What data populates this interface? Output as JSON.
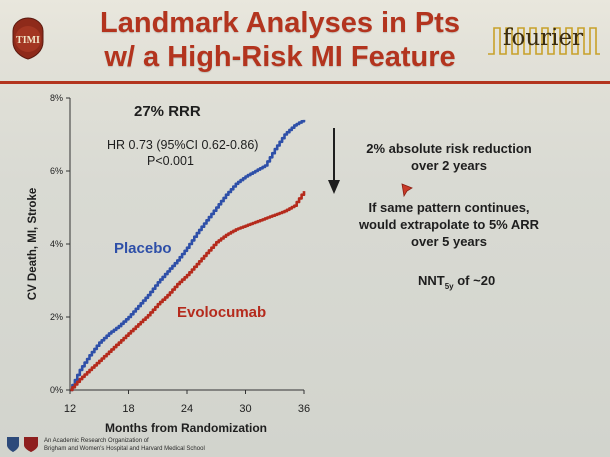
{
  "slide": {
    "title_line1": "Landmark Analyses in Pts",
    "title_line2": "w/ a High-Risk MI Feature",
    "timi_logo_text": "TIMI",
    "fourier_logo_text": "fourier"
  },
  "annotations": {
    "rrr": "27% RRR",
    "hr": "HR 0.73 (95%CI 0.62-0.86)",
    "p": "P<0.001",
    "abs_line1": "2% absolute risk reduction",
    "abs_line2": "over 2 years",
    "extrap_line1": "If same pattern continues,",
    "extrap_line2": "would extrapolate to 5% ARR",
    "extrap_line3": "over 5 years",
    "nnt_main": "NNT",
    "nnt_sub": "5y",
    "nnt_tail": " of ~20"
  },
  "footer": {
    "line1": "An Academic Research Organization of",
    "line2": "Brigham and Women's Hospital and Harvard Medical School"
  },
  "colors": {
    "title": "#b3341e",
    "placebo": "#2e4fa8",
    "evolocumab": "#b52a1c",
    "axis": "#333333"
  },
  "chart_data": {
    "type": "line",
    "title": "",
    "xlabel": "Months from Randomization",
    "ylabel": "CV Death, MI, Stroke",
    "xlim": [
      12,
      36
    ],
    "ylim": [
      0,
      8
    ],
    "x_ticks": [
      12,
      18,
      24,
      30,
      36
    ],
    "y_ticks": [
      0,
      2,
      4,
      6,
      8
    ],
    "y_tick_labels": [
      "0%",
      "2%",
      "4%",
      "6%",
      "8%"
    ],
    "grid": false,
    "series": [
      {
        "name": "Placebo",
        "color": "#2e4fa8",
        "x": [
          12,
          13,
          14,
          15,
          16,
          17,
          18,
          19,
          20,
          21,
          22,
          23,
          24,
          25,
          26,
          27,
          28,
          29,
          30,
          31,
          32,
          33,
          34,
          35,
          36
        ],
        "y": [
          0,
          0.55,
          0.95,
          1.3,
          1.55,
          1.75,
          2.0,
          2.3,
          2.6,
          2.95,
          3.25,
          3.55,
          3.9,
          4.3,
          4.65,
          5.0,
          5.35,
          5.65,
          5.85,
          6.0,
          6.15,
          6.6,
          7.0,
          7.25,
          7.4
        ]
      },
      {
        "name": "Evolocumab",
        "color": "#b52a1c",
        "x": [
          12,
          13,
          14,
          15,
          16,
          17,
          18,
          19,
          20,
          21,
          22,
          23,
          24,
          25,
          26,
          27,
          28,
          29,
          30,
          31,
          32,
          33,
          34,
          35,
          36
        ],
        "y": [
          0,
          0.3,
          0.55,
          0.8,
          1.05,
          1.3,
          1.55,
          1.8,
          2.05,
          2.35,
          2.6,
          2.9,
          3.15,
          3.45,
          3.75,
          4.05,
          4.25,
          4.4,
          4.5,
          4.6,
          4.7,
          4.8,
          4.9,
          5.05,
          5.45
        ]
      }
    ]
  }
}
